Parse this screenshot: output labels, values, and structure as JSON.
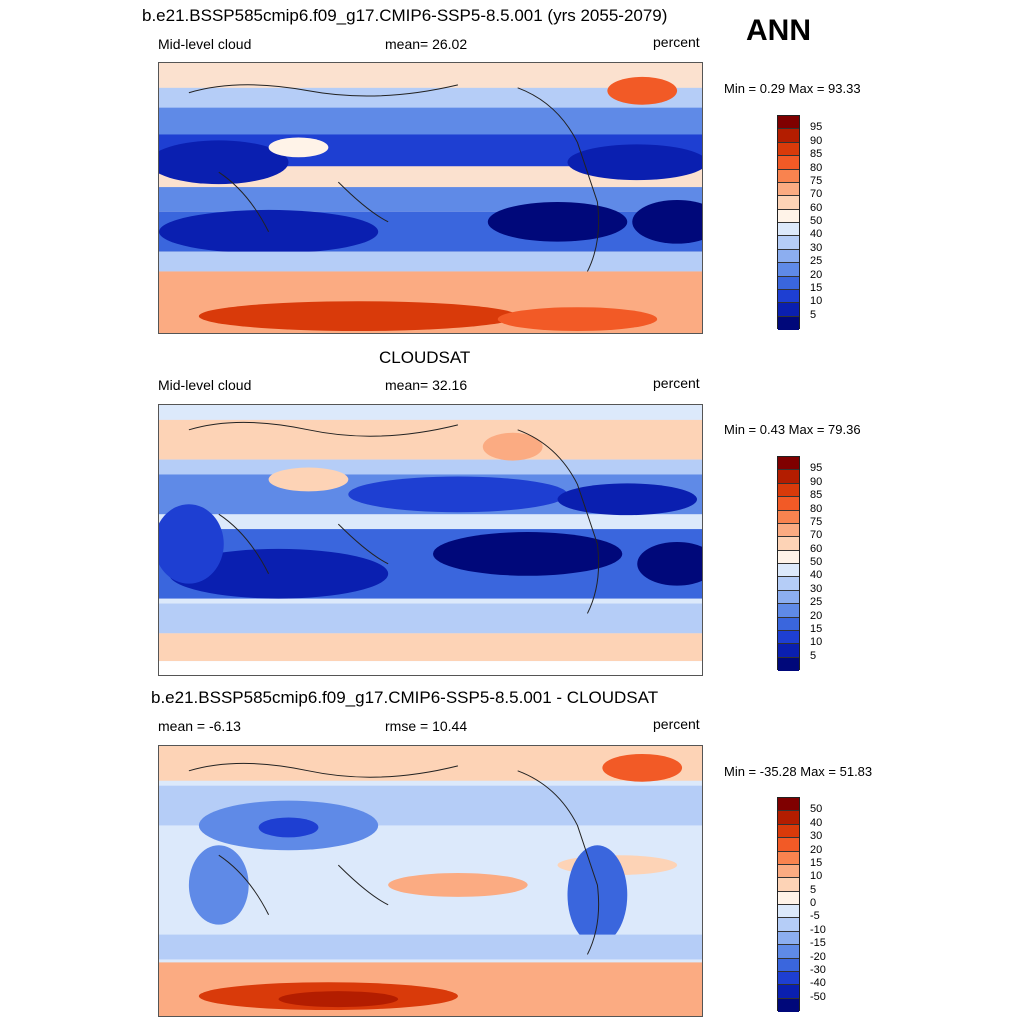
{
  "season": "ANN",
  "panels": [
    {
      "title": "b.e21.BSSP585cmip6.f09_g17.CMIP6-SSP5-8.5.001 (yrs 2055-2079)",
      "left_label": "Mid-level cloud",
      "center_label": "mean=  26.02",
      "right_label": "percent",
      "minmax": "Min =    0.29 Max =  93.33",
      "colorbar_labels": [
        "95",
        "90",
        "85",
        "80",
        "75",
        "70",
        "60",
        "50",
        "40",
        "30",
        "25",
        "20",
        "15",
        "10",
        "5"
      ]
    },
    {
      "title": "CLOUDSAT",
      "left_label": "Mid-level cloud",
      "center_label": "mean=  32.16",
      "right_label": "percent",
      "minmax": "Min =    0.43 Max =  79.36",
      "colorbar_labels": [
        "95",
        "90",
        "85",
        "80",
        "75",
        "70",
        "60",
        "50",
        "40",
        "30",
        "25",
        "20",
        "15",
        "10",
        "5"
      ]
    },
    {
      "title": "b.e21.BSSP585cmip6.f09_g17.CMIP6-SSP5-8.5.001 - CLOUDSAT",
      "left_label": "mean =  -6.13",
      "center_label": "rmse =  10.44",
      "right_label": "percent",
      "minmax": "Min = -35.28 Max =  51.83",
      "colorbar_labels": [
        "50",
        "40",
        "30",
        "20",
        "15",
        "10",
        "5",
        "0",
        "-5",
        "-10",
        "-15",
        "-20",
        "-30",
        "-40",
        "-50"
      ]
    }
  ],
  "colors": {
    "scale": [
      "#7f0000",
      "#b31d00",
      "#d93a0a",
      "#f25a26",
      "#f9834f",
      "#fbab82",
      "#fdd3b6",
      "#fff3e8",
      "#dce9fb",
      "#b5cdf7",
      "#8caef0",
      "#5f8ae7",
      "#3a66dd",
      "#1e3fd2",
      "#0a1fb0",
      "#00087a"
    ],
    "land_outline": "#222222"
  }
}
